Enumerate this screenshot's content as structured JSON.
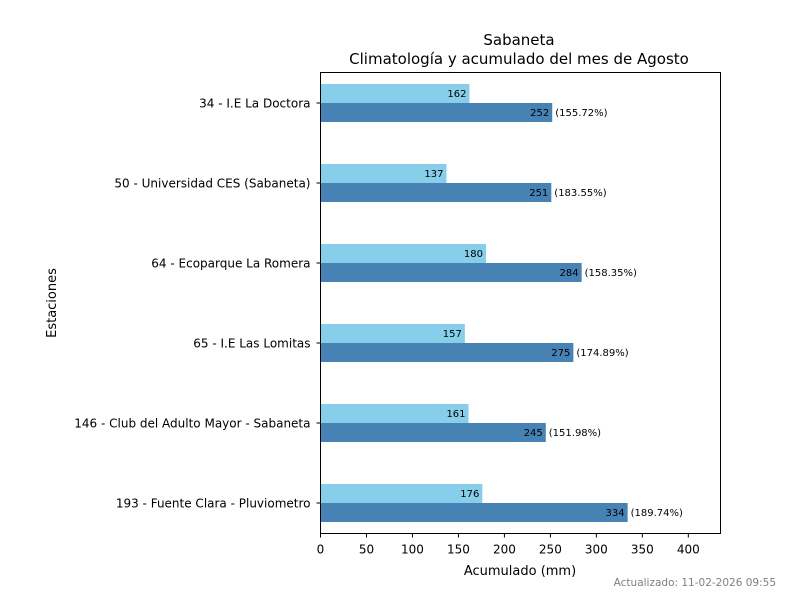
{
  "chart_data": {
    "type": "bar",
    "orientation": "horizontal",
    "title": "Sabaneta",
    "subtitle": "Climatología y acumulado del mes de Agosto",
    "xlabel": "Acumulado (mm)",
    "ylabel": "Estaciones",
    "xlim": [
      0,
      435
    ],
    "xticks": [
      0,
      50,
      100,
      150,
      200,
      250,
      300,
      350,
      400
    ],
    "categories": [
      "34 - I.E La Doctora",
      "50 - Universidad CES (Sabaneta)",
      "64 - Ecoparque La Romera",
      "65 - I.E Las Lomitas",
      "146 - Club del Adulto Mayor - Sabaneta",
      "193 - Fuente Clara - Pluviometro"
    ],
    "series": [
      {
        "name": "Climatología",
        "color": "#87ceeb",
        "values": [
          162,
          137,
          180,
          157,
          161,
          176
        ]
      },
      {
        "name": "Acumulado",
        "color": "#4682b4",
        "values": [
          252,
          251,
          284,
          275,
          245,
          334
        ]
      }
    ],
    "percent_labels": [
      "(155.72%)",
      "(183.55%)",
      "(158.35%)",
      "(174.89%)",
      "(151.98%)",
      "(189.74%)"
    ]
  },
  "footer": {
    "updated": "Actualizado: 11-02-2026 09:55"
  }
}
